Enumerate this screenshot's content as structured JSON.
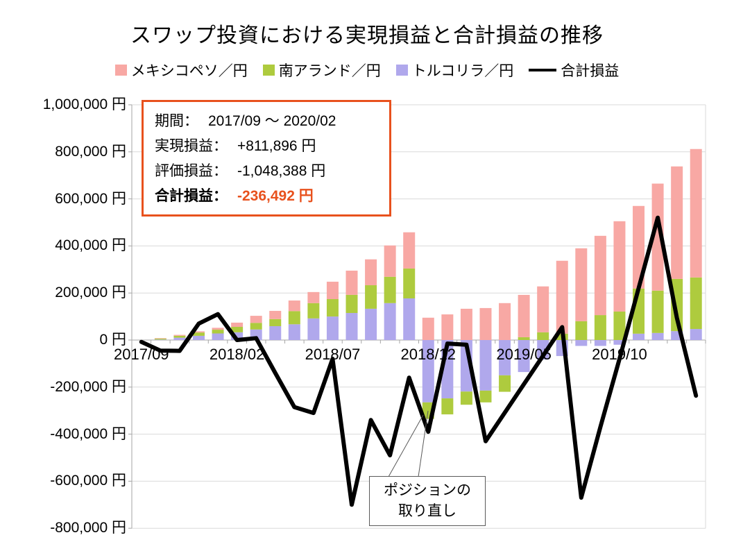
{
  "title": "スワップ投資における実現損益と合計損益の推移",
  "legend": {
    "items": [
      {
        "label": "メキシコペソ／円",
        "color": "#F8A8A4",
        "marker": "square"
      },
      {
        "label": "南アランド／円",
        "color": "#AECB3E",
        "marker": "square"
      },
      {
        "label": "トルコリラ／円",
        "color": "#B0A8EC",
        "marker": "square"
      },
      {
        "label": "合計損益",
        "color": "#000000",
        "marker": "line"
      }
    ]
  },
  "info_box": {
    "rows": [
      {
        "label": "期間：",
        "value": "2017/09 ～ 2020/02",
        "highlight": false
      },
      {
        "label": "実現損益：",
        "value": "+811,896 円",
        "highlight": false
      },
      {
        "label": "評価損益：",
        "value": "-1,048,388 円",
        "highlight": false
      },
      {
        "label": "合計損益：",
        "value": "-236,492 円",
        "highlight": true
      }
    ],
    "highlight_color": "#E8511D"
  },
  "annotation": {
    "line1": "ポジションの",
    "line2": "取り直し"
  },
  "y_axis": {
    "unit": "円",
    "ticks": [
      {
        "v": 1000000,
        "label": "1,000,000 円"
      },
      {
        "v": 800000,
        "label": "800,000 円"
      },
      {
        "v": 600000,
        "label": "600,000 円"
      },
      {
        "v": 400000,
        "label": "400,000 円"
      },
      {
        "v": 200000,
        "label": "200,000 円"
      },
      {
        "v": 0,
        "label": "0 円"
      },
      {
        "v": -200000,
        "label": "-200,000 円"
      },
      {
        "v": -400000,
        "label": "-400,000 円"
      },
      {
        "v": -600000,
        "label": "-600,000 円"
      },
      {
        "v": -800000,
        "label": "-800,000 円"
      }
    ]
  },
  "x_axis": {
    "tick_labels": [
      "2017/09",
      "2018/02",
      "2018/07",
      "2018/12",
      "2019/05",
      "2019/10"
    ],
    "tick_indices": [
      0,
      5,
      10,
      15,
      20,
      25
    ]
  },
  "chart_data": {
    "type": "combo: stacked-bar + line",
    "title": "スワップ投資における実現損益と合計損益の推移",
    "ylim": [
      -800000,
      1000000
    ],
    "y_step": 200000,
    "grid": true,
    "legend_position": "top",
    "x": [
      "2017/09",
      "2017/10",
      "2017/11",
      "2017/12",
      "2018/01",
      "2018/02",
      "2018/03",
      "2018/04",
      "2018/05",
      "2018/06",
      "2018/07",
      "2018/08",
      "2018/09",
      "2018/10",
      "2018/11",
      "2018/12",
      "2019/01",
      "2019/02",
      "2019/03",
      "2019/04",
      "2019/05",
      "2019/06",
      "2019/07",
      "2019/08",
      "2019/09",
      "2019/10",
      "2019/11",
      "2019/12",
      "2020/01",
      "2020/02"
    ],
    "series": [
      {
        "name": "トルコリラ／円",
        "type": "bar",
        "color": "#B0A8EC",
        "values": [
          0,
          2000,
          10000,
          18000,
          28000,
          33000,
          45000,
          59000,
          67000,
          92000,
          100000,
          115000,
          133000,
          157000,
          177000,
          -265000,
          -248000,
          -219000,
          -215000,
          -150000,
          -136000,
          -83000,
          -68000,
          -25000,
          -25000,
          -20000,
          27000,
          30000,
          38000,
          47000
        ]
      },
      {
        "name": "南アランド／円",
        "type": "bar",
        "color": "#AECB3E",
        "values": [
          0,
          4000,
          8000,
          14000,
          16000,
          23000,
          28000,
          30000,
          56000,
          65000,
          74000,
          77000,
          100000,
          112000,
          127000,
          -70000,
          -68000,
          -56000,
          -50000,
          -70000,
          12000,
          33000,
          27000,
          80000,
          106000,
          121000,
          192000,
          180000,
          222000,
          219000
        ]
      },
      {
        "name": "メキシコペソ／円",
        "type": "bar",
        "color": "#F8A8A4",
        "values": [
          0,
          2000,
          4000,
          5000,
          8000,
          18000,
          30000,
          35000,
          45000,
          47000,
          74000,
          103000,
          110000,
          133000,
          154000,
          95000,
          109000,
          133000,
          136000,
          157000,
          180000,
          195000,
          310000,
          310000,
          337000,
          384000,
          351000,
          455000,
          478000,
          546000
        ]
      },
      {
        "name": "合計損益",
        "type": "line",
        "color": "#000000",
        "values": [
          -8000,
          -45000,
          -46000,
          70000,
          110000,
          0,
          8000,
          -140000,
          -285000,
          -310000,
          -80000,
          -700000,
          -340000,
          -490000,
          -160000,
          -390000,
          -15000,
          -20000,
          -430000,
          -309000,
          -188000,
          -67000,
          55000,
          -670000,
          -370000,
          -80000,
          220000,
          520000,
          95000,
          -236492
        ]
      }
    ]
  },
  "colors": {
    "grid": "#D9D9D9",
    "axis": "#A6A6A6",
    "annotation_border": "#595959"
  }
}
